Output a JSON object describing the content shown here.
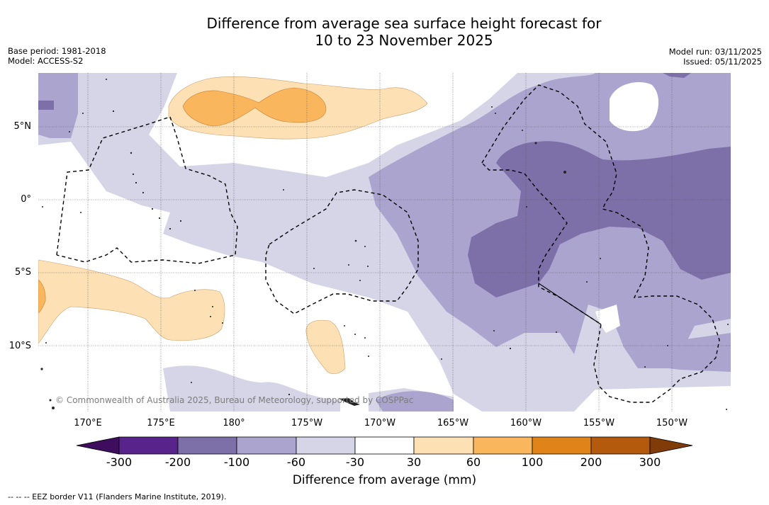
{
  "title_line1": "Difference from average sea surface height forecast for",
  "title_line2": "10 to 23 November 2025",
  "base_period": "Base period: 1981-2018",
  "model": "Model: ACCESS-S2",
  "model_run": "Model run: 03/11/2025",
  "issued": "Issued: 05/11/2025",
  "lat_labels": [
    "5°N",
    "0°",
    "5°S",
    "10°S"
  ],
  "lon_labels": [
    "170°E",
    "175°E",
    "180°",
    "175°W",
    "170°W",
    "165°W",
    "160°W",
    "155°W",
    "150°W"
  ],
  "copyright": "© Commonwealth of Australia 2025, Bureau of Meteorology, supported by COSPPac",
  "colorbar": {
    "ticks": [
      "-300",
      "-200",
      "-100",
      "-60",
      "-30",
      "30",
      "60",
      "100",
      "200",
      "300"
    ],
    "colors": [
      "#3f0d5e",
      "#58238a",
      "#7d70a9",
      "#aba4ce",
      "#d6d5e8",
      "#ffffff",
      "#fde0b4",
      "#f9b65d",
      "#e08419",
      "#b35a0d",
      "#7f3b08"
    ],
    "label": "Difference from average (mm)"
  },
  "footer": "--  --  -- EEZ border V11 (Flanders Marine Institute, 2019)."
}
